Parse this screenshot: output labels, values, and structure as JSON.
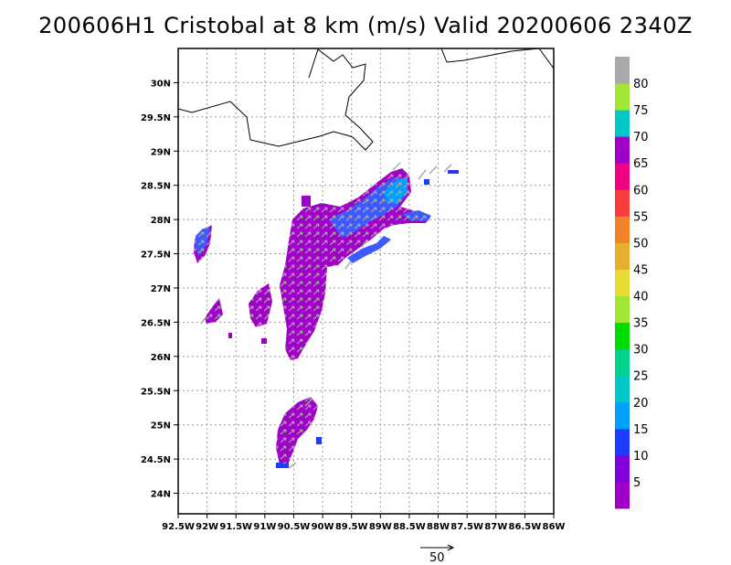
{
  "title": "200606H1 Cristobal at 8 km (m/s) Valid 20200606 2340Z",
  "map": {
    "lon_range": [
      -92.5,
      -86
    ],
    "lat_range": [
      23.7,
      30.5
    ],
    "lon_ticks": [
      "92.5W",
      "92W",
      "91.5W",
      "91W",
      "90.5W",
      "90W",
      "89.5W",
      "89W",
      "88.5W",
      "88W",
      "87.5W",
      "87W",
      "86.5W",
      "86W"
    ],
    "lat_ticks": [
      "24N",
      "24.5N",
      "25N",
      "25.5N",
      "26N",
      "26.5N",
      "27N",
      "27.5N",
      "28N",
      "28.5N",
      "29N",
      "29.5N",
      "30N"
    ],
    "grid": true,
    "grid_style": "dotted"
  },
  "colorbar": {
    "labels": [
      "5",
      "10",
      "15",
      "20",
      "25",
      "30",
      "35",
      "40",
      "45",
      "50",
      "55",
      "60",
      "65",
      "70",
      "75",
      "80"
    ],
    "colors": [
      "#a000c8",
      "#8200dc",
      "#1e3cff",
      "#00a0ff",
      "#00c8c8",
      "#00d28c",
      "#00dc00",
      "#a0e632",
      "#e6dc32",
      "#e6af2d",
      "#f08228",
      "#fa3c3c",
      "#f00082",
      "#a000c8",
      "#00c8c8",
      "#a0e632",
      "#aaaaaa"
    ]
  },
  "reference_vector": {
    "label": "50"
  }
}
